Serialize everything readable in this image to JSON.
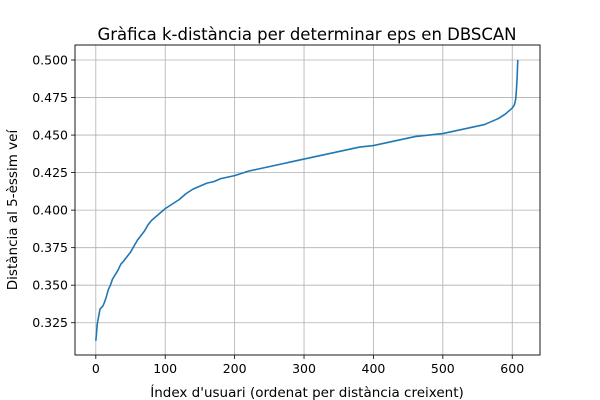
{
  "chart_data": {
    "type": "line",
    "title": "Gràfica k-distància per determinar eps en DBSCAN",
    "xlabel": "Índex d'usuari (ordenat per distància creixent)",
    "ylabel": "Distància al 5-èssim veí",
    "xlim": [
      -30,
      640
    ],
    "ylim": [
      0.3035,
      0.51
    ],
    "grid": true,
    "xticks": [
      0,
      100,
      200,
      300,
      400,
      500,
      600
    ],
    "yticks": [
      0.325,
      0.35,
      0.375,
      0.4,
      0.425,
      0.45,
      0.475,
      0.5
    ],
    "ytick_labels": [
      "0.325",
      "0.350",
      "0.375",
      "0.400",
      "0.425",
      "0.450",
      "0.475",
      "0.500"
    ],
    "line_color": "#1f77b4",
    "series": [
      {
        "x": [
          0,
          1,
          2,
          4,
          6,
          8,
          10,
          12,
          15,
          18,
          21,
          24,
          28,
          32,
          36,
          40,
          45,
          50,
          55,
          60,
          65,
          70,
          75,
          80,
          85,
          90,
          95,
          100,
          110,
          120,
          130,
          140,
          150,
          160,
          170,
          180,
          190,
          200,
          210,
          220,
          230,
          240,
          250,
          260,
          270,
          280,
          290,
          300,
          320,
          340,
          360,
          380,
          400,
          420,
          440,
          460,
          480,
          500,
          520,
          540,
          560,
          570,
          580,
          590,
          595,
          600,
          603,
          605,
          606,
          607,
          608
        ],
        "y": [
          0.313,
          0.318,
          0.324,
          0.329,
          0.334,
          0.335,
          0.336,
          0.338,
          0.342,
          0.347,
          0.35,
          0.354,
          0.357,
          0.36,
          0.364,
          0.366,
          0.369,
          0.372,
          0.376,
          0.38,
          0.383,
          0.386,
          0.39,
          0.393,
          0.395,
          0.397,
          0.399,
          0.401,
          0.404,
          0.407,
          0.411,
          0.414,
          0.416,
          0.418,
          0.419,
          0.421,
          0.422,
          0.423,
          0.4245,
          0.426,
          0.427,
          0.428,
          0.429,
          0.43,
          0.431,
          0.432,
          0.433,
          0.434,
          0.436,
          0.438,
          0.44,
          0.442,
          0.443,
          0.445,
          0.447,
          0.449,
          0.45,
          0.451,
          0.453,
          0.455,
          0.457,
          0.459,
          0.461,
          0.464,
          0.466,
          0.468,
          0.47,
          0.474,
          0.48,
          0.488,
          0.5
        ]
      }
    ]
  }
}
